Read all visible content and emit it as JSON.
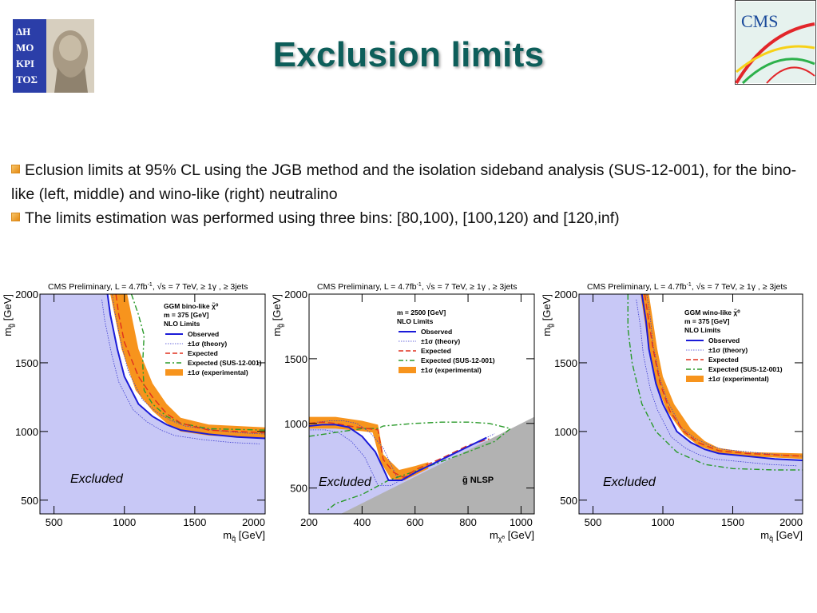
{
  "slide": {
    "title": "Exclusion limits",
    "bullets": [
      "Eclusion limits at 95% CL using the JGB method and the isolation sideband analysis (SUS-12-001), for the bino-like (left, middle) and wino-like (right) neutralino",
      "The limits estimation was performed using three bins: [80,100), [100,120) and [120,inf)"
    ]
  },
  "logos": {
    "left": "ΔΗΜΟΚΡΙΤΟΣ",
    "right": "CMS"
  },
  "colors": {
    "title": "#0d5e5a",
    "excluded_fill": "#c8c8f6",
    "observed": "#1a1ad8",
    "expected": "#e0301e",
    "sus_expected": "#2a9a2a",
    "band": "#f7941d",
    "nlsp": "#b2b2b2"
  },
  "chart_data": [
    {
      "type": "line",
      "header": "CMS Preliminary, L = 4.7fb",
      "header_sup1": "-1",
      "header_rest": ", √s = 7 TeV, ≥ 1γ , ≥ 3jets",
      "xlabel": "m",
      "xlabel_sub": "q̃",
      "xlabel_unit": " [GeV]",
      "ylabel": "m",
      "ylabel_sub": "g̃",
      "ylabel_unit": " [GeV]",
      "xlim": [
        400,
        2000
      ],
      "ylim": [
        400,
        2000
      ],
      "xticks": [
        500,
        1000,
        1500,
        2000
      ],
      "xtick_labels": [
        "500",
        "1000",
        "1500",
        "2000"
      ],
      "yticks": [
        500,
        1000,
        1500,
        2000
      ],
      "ytick_labels": [
        "500",
        "1000",
        "1500",
        "2000"
      ],
      "legend": {
        "title_lines": [
          "GGM bino-like χ̃⁰",
          "m = 375 [GeV]",
          "NLO Limits"
        ],
        "entries": [
          "Observed",
          "±1σ (theory)",
          "Expected",
          "Expected (SUS-12-001)",
          "±1σ (experimental)"
        ]
      },
      "annotation": "Excluded",
      "series": [
        {
          "name": "Observed",
          "x": [
            880,
            900,
            950,
            1000,
            1100,
            1200,
            1300,
            1400,
            1600,
            1800,
            2000
          ],
          "y": [
            2000,
            1850,
            1600,
            1400,
            1200,
            1110,
            1050,
            1010,
            980,
            960,
            950
          ]
        },
        {
          "name": "Expected",
          "x": [
            940,
            960,
            1000,
            1100,
            1200,
            1300,
            1400,
            1600,
            1800,
            2000
          ],
          "y": [
            2000,
            1850,
            1650,
            1400,
            1250,
            1130,
            1060,
            1010,
            1000,
            990
          ]
        },
        {
          "name": "Expected (SUS-12-001)",
          "x": [
            1050,
            1100,
            1140,
            1130,
            1140,
            1200,
            1300,
            1400,
            1600,
            2000
          ],
          "y": [
            2000,
            1850,
            1700,
            1500,
            1300,
            1200,
            1110,
            1060,
            1020,
            1010
          ]
        },
        {
          "name": "±1σ (experimental) upper",
          "x": [
            1020,
            1050,
            1100,
            1200,
            1300,
            1400,
            1600,
            1800,
            2000
          ],
          "y": [
            2000,
            1850,
            1600,
            1350,
            1200,
            1100,
            1050,
            1040,
            1030
          ]
        },
        {
          "name": "±1σ (experimental) lower",
          "x": [
            900,
            930,
            980,
            1080,
            1200,
            1300,
            1400,
            1600,
            1800,
            2000
          ],
          "y": [
            2000,
            1850,
            1600,
            1300,
            1150,
            1060,
            1000,
            970,
            960,
            950
          ]
        }
      ]
    },
    {
      "type": "line",
      "header": "CMS Preliminary, L = 4.7fb",
      "header_sup1": "-1",
      "header_rest": ", √s = 7 TeV, ≥ 1γ , ≥ 3jets",
      "xlabel": "m",
      "xlabel_sub": "χ̃⁰",
      "xlabel_unit": " [GeV]",
      "ylabel": "m",
      "ylabel_sub": "g̃",
      "ylabel_unit": " [GeV]",
      "xlim": [
        200,
        1050
      ],
      "ylim": [
        300,
        2000
      ],
      "xticks": [
        200,
        400,
        600,
        800,
        1000
      ],
      "xtick_labels": [
        "200",
        "400",
        "600",
        "800",
        "1000"
      ],
      "yticks": [
        500,
        1000,
        1500,
        2000
      ],
      "ytick_labels": [
        "500",
        "1000",
        "1500",
        "2000"
      ],
      "legend": {
        "title_lines": [
          "m = 2500 [GeV]",
          "NLO Limits"
        ],
        "entries": [
          "Observed",
          "±1σ (theory)",
          "Expected",
          "Expected (SUS-12-001)",
          "±1σ (experimental)"
        ]
      },
      "annotation": "Excluded",
      "annotation2": "g̃ NLSP",
      "series": [
        {
          "name": "Observed",
          "x": [
            200,
            250,
            300,
            350,
            400,
            450,
            480,
            500,
            550,
            600,
            700,
            800,
            870
          ],
          "y": [
            980,
            990,
            990,
            970,
            900,
            780,
            650,
            560,
            560,
            620,
            720,
            820,
            890
          ]
        },
        {
          "name": "Expected",
          "x": [
            200,
            250,
            300,
            350,
            420,
            460,
            480,
            520,
            560,
            600,
            700,
            800,
            880
          ],
          "y": [
            1000,
            1010,
            1000,
            980,
            960,
            950,
            720,
            620,
            580,
            640,
            730,
            830,
            880
          ]
        },
        {
          "name": "Expected (SUS-12-001)",
          "x": [
            200,
            300,
            400,
            460,
            480,
            600,
            700,
            800,
            880,
            960,
            900,
            800,
            600,
            500,
            400,
            300,
            270
          ],
          "y": [
            900,
            930,
            960,
            960,
            980,
            1000,
            1010,
            1010,
            1000,
            960,
            860,
            780,
            630,
            560,
            450,
            380,
            330
          ]
        },
        {
          "name": "±1σ (experimental) upper",
          "x": [
            200,
            300,
            400,
            460,
            480,
            540,
            600,
            650
          ],
          "y": [
            1050,
            1050,
            1020,
            990,
            760,
            640,
            670,
            700
          ]
        },
        {
          "name": "±1σ (experimental) lower",
          "x": [
            200,
            300,
            400,
            440,
            470,
            510,
            560,
            600,
            650
          ],
          "y": [
            960,
            960,
            940,
            930,
            700,
            570,
            560,
            600,
            650
          ]
        },
        {
          "name": "g̃ NLSP boundary",
          "x": [
            320,
            1050
          ],
          "y": [
            300,
            1050
          ]
        }
      ]
    },
    {
      "type": "line",
      "header": "CMS Preliminary, L = 4.7fb",
      "header_sup1": "-1",
      "header_rest": ", √s = 7 TeV, ≥ 1γ , ≥ 3jets",
      "xlabel": "m",
      "xlabel_sub": "q̃",
      "xlabel_unit": " [GeV]",
      "ylabel": "m",
      "ylabel_sub": "g̃",
      "ylabel_unit": " [GeV]",
      "xlim": [
        400,
        2000
      ],
      "ylim": [
        400,
        2000
      ],
      "xticks": [
        500,
        1000,
        1500,
        2000
      ],
      "xtick_labels": [
        "500",
        "1000",
        "1500",
        "2000"
      ],
      "yticks": [
        500,
        1000,
        1500,
        2000
      ],
      "ytick_labels": [
        "500",
        "1000",
        "1500",
        "2000"
      ],
      "legend": {
        "title_lines": [
          "GGM wino-like χ̃⁰",
          "m = 375 [GeV]",
          "NLO Limits"
        ],
        "entries": [
          "Observed",
          "±1σ (theory)",
          "Expected",
          "Expected (SUS-12-001)",
          "±1σ (experimental)"
        ]
      },
      "annotation": "Excluded",
      "series": [
        {
          "name": "Observed",
          "x": [
            850,
            880,
            900,
            950,
            1000,
            1100,
            1200,
            1300,
            1400,
            1600,
            1800,
            2000
          ],
          "y": [
            2000,
            1800,
            1600,
            1350,
            1200,
            1000,
            920,
            870,
            840,
            820,
            800,
            790
          ]
        },
        {
          "name": "Expected",
          "x": [
            870,
            900,
            930,
            980,
            1050,
            1150,
            1250,
            1400,
            1600,
            1800,
            2000
          ],
          "y": [
            2000,
            1800,
            1600,
            1350,
            1150,
            1000,
            920,
            860,
            840,
            830,
            820
          ]
        },
        {
          "name": "Expected (SUS-12-001)",
          "x": [
            750,
            750,
            780,
            850,
            950,
            1100,
            1300,
            1500,
            1800,
            2000
          ],
          "y": [
            2000,
            1750,
            1500,
            1200,
            1000,
            850,
            760,
            730,
            720,
            720
          ]
        },
        {
          "name": "±1σ (experimental) upper",
          "x": [
            900,
            930,
            960,
            1000,
            1080,
            1200,
            1300,
            1400,
            1600,
            1800,
            2000
          ],
          "y": [
            2000,
            1800,
            1600,
            1400,
            1200,
            1020,
            930,
            880,
            850,
            845,
            840
          ]
        },
        {
          "name": "±1σ (experimental) lower",
          "x": [
            840,
            870,
            900,
            950,
            1030,
            1150,
            1250,
            1400,
            1600,
            1800,
            2000
          ],
          "y": [
            2000,
            1800,
            1600,
            1350,
            1150,
            980,
            900,
            840,
            820,
            810,
            800
          ]
        }
      ]
    }
  ]
}
